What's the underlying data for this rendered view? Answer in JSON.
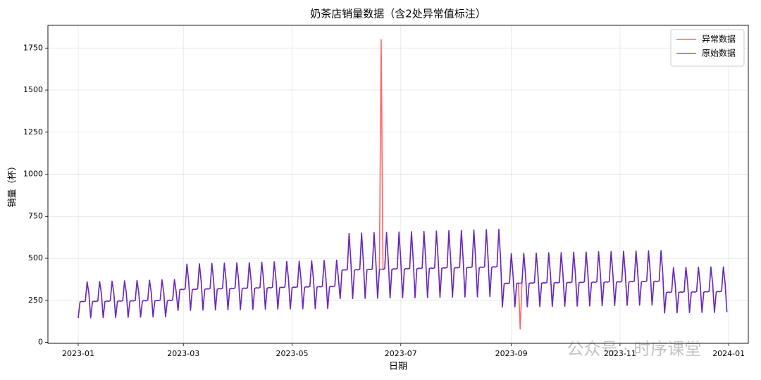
{
  "chart_data": {
    "type": "line",
    "title": "奶茶店销量数据（含2处异常值标注）",
    "x_label": "日期",
    "y_label": "销量（杯）",
    "watermark": "公众号 · 时序课堂",
    "xlim": [
      -17,
      376
    ],
    "xticks": [
      {
        "value": 0,
        "label": "2023-01"
      },
      {
        "value": 59,
        "label": "2023-03"
      },
      {
        "value": 120,
        "label": "2023-05"
      },
      {
        "value": 181,
        "label": "2023-07"
      },
      {
        "value": 243,
        "label": "2023-09"
      },
      {
        "value": 304,
        "label": "2023-11"
      },
      {
        "value": 365,
        "label": "2024-01"
      }
    ],
    "ylim": [
      -6,
      1885
    ],
    "yticks": [
      0,
      250,
      500,
      750,
      1000,
      1250,
      1500,
      1750
    ],
    "grid": true,
    "legend": "upper right",
    "series": [
      {
        "name": "异常数据",
        "color": "#ff0000",
        "values": [
          145,
          240,
          244,
          242,
          246,
          360,
          290,
          146,
          241,
          245,
          243,
          247,
          362,
          291,
          147,
          242,
          246,
          244,
          248,
          364,
          292,
          148,
          243,
          247,
          245,
          249,
          366,
          293,
          149,
          244,
          248,
          246,
          250,
          368,
          294,
          150,
          245,
          249,
          247,
          251,
          370,
          295,
          151,
          246,
          250,
          248,
          252,
          372,
          296,
          152,
          247,
          251,
          249,
          253,
          374,
          297,
          190,
          312,
          316,
          314,
          318,
          465,
          362,
          191,
          313,
          317,
          315,
          319,
          467,
          363,
          192,
          315,
          319,
          317,
          321,
          469,
          365,
          193,
          316,
          320,
          318,
          322,
          471,
          366,
          194,
          318,
          322,
          320,
          324,
          473,
          368,
          195,
          319,
          323,
          321,
          325,
          475,
          369,
          196,
          321,
          325,
          323,
          327,
          477,
          371,
          197,
          322,
          326,
          324,
          328,
          479,
          372,
          198,
          324,
          328,
          326,
          330,
          481,
          374,
          199,
          325,
          329,
          327,
          331,
          483,
          375,
          200,
          327,
          331,
          329,
          333,
          485,
          377,
          201,
          328,
          332,
          330,
          334,
          487,
          378,
          202,
          330,
          334,
          332,
          336,
          489,
          380,
          260,
          428,
          432,
          430,
          434,
          648,
          478,
          261,
          429,
          433,
          431,
          435,
          650,
          479,
          262,
          431,
          435,
          433,
          437,
          652,
          481,
          263,
          432,
          1800,
          434,
          438,
          654,
          482,
          264,
          434,
          438,
          436,
          440,
          656,
          484,
          265,
          435,
          439,
          437,
          441,
          658,
          485,
          266,
          437,
          441,
          439,
          443,
          660,
          487,
          267,
          438,
          442,
          440,
          444,
          662,
          488,
          268,
          440,
          444,
          442,
          446,
          664,
          490,
          269,
          441,
          445,
          443,
          447,
          666,
          491,
          270,
          443,
          447,
          445,
          449,
          668,
          493,
          271,
          444,
          448,
          446,
          450,
          670,
          494,
          272,
          446,
          450,
          448,
          452,
          672,
          496,
          210,
          348,
          352,
          350,
          354,
          528,
          398,
          211,
          349,
          353,
          80,
          355,
          530,
          399,
          212,
          350,
          354,
          352,
          356,
          531,
          400,
          213,
          351,
          355,
          353,
          357,
          533,
          401,
          214,
          352,
          356,
          354,
          358,
          534,
          402,
          215,
          353,
          357,
          355,
          359,
          536,
          403,
          216,
          354,
          358,
          356,
          360,
          537,
          404,
          217,
          355,
          359,
          357,
          361,
          539,
          405,
          218,
          356,
          360,
          358,
          362,
          540,
          406,
          219,
          357,
          361,
          359,
          363,
          542,
          407,
          220,
          358,
          362,
          360,
          364,
          543,
          408,
          221,
          359,
          363,
          361,
          365,
          545,
          409,
          222,
          360,
          364,
          362,
          366,
          546,
          410,
          175,
          295,
          299,
          297,
          301,
          445,
          345,
          176,
          296,
          300,
          298,
          302,
          446,
          346,
          177,
          297,
          301,
          299,
          303,
          447,
          347,
          178,
          298,
          302,
          300,
          304,
          448,
          348,
          179,
          299,
          303,
          301,
          305,
          449,
          349,
          180
        ]
      },
      {
        "name": "原始数据",
        "color": "#0000ff",
        "values": [
          145,
          240,
          244,
          242,
          246,
          360,
          290,
          146,
          241,
          245,
          243,
          247,
          362,
          291,
          147,
          242,
          246,
          244,
          248,
          364,
          292,
          148,
          243,
          247,
          245,
          249,
          366,
          293,
          149,
          244,
          248,
          246,
          250,
          368,
          294,
          150,
          245,
          249,
          247,
          251,
          370,
          295,
          151,
          246,
          250,
          248,
          252,
          372,
          296,
          152,
          247,
          251,
          249,
          253,
          374,
          297,
          190,
          312,
          316,
          314,
          318,
          465,
          362,
          191,
          313,
          317,
          315,
          319,
          467,
          363,
          192,
          315,
          319,
          317,
          321,
          469,
          365,
          193,
          316,
          320,
          318,
          322,
          471,
          366,
          194,
          318,
          322,
          320,
          324,
          473,
          368,
          195,
          319,
          323,
          321,
          325,
          475,
          369,
          196,
          321,
          325,
          323,
          327,
          477,
          371,
          197,
          322,
          326,
          324,
          328,
          479,
          372,
          198,
          324,
          328,
          326,
          330,
          481,
          374,
          199,
          325,
          329,
          327,
          331,
          483,
          375,
          200,
          327,
          331,
          329,
          333,
          485,
          377,
          201,
          328,
          332,
          330,
          334,
          487,
          378,
          202,
          330,
          334,
          332,
          336,
          489,
          380,
          260,
          428,
          432,
          430,
          434,
          648,
          478,
          261,
          429,
          433,
          431,
          435,
          650,
          479,
          262,
          431,
          435,
          433,
          437,
          652,
          481,
          263,
          432,
          436,
          434,
          438,
          654,
          482,
          264,
          434,
          438,
          436,
          440,
          656,
          484,
          265,
          435,
          439,
          437,
          441,
          658,
          485,
          266,
          437,
          441,
          439,
          443,
          660,
          487,
          267,
          438,
          442,
          440,
          444,
          662,
          488,
          268,
          440,
          444,
          442,
          446,
          664,
          490,
          269,
          441,
          445,
          443,
          447,
          666,
          491,
          270,
          443,
          447,
          445,
          449,
          668,
          493,
          271,
          444,
          448,
          446,
          450,
          670,
          494,
          272,
          446,
          450,
          448,
          452,
          672,
          496,
          210,
          348,
          352,
          350,
          354,
          528,
          398,
          211,
          349,
          353,
          351,
          355,
          530,
          399,
          212,
          350,
          354,
          352,
          356,
          531,
          400,
          213,
          351,
          355,
          353,
          357,
          533,
          401,
          214,
          352,
          356,
          354,
          358,
          534,
          402,
          215,
          353,
          357,
          355,
          359,
          536,
          403,
          216,
          354,
          358,
          356,
          360,
          537,
          404,
          217,
          355,
          359,
          357,
          361,
          539,
          405,
          218,
          356,
          360,
          358,
          362,
          540,
          406,
          219,
          357,
          361,
          359,
          363,
          542,
          407,
          220,
          358,
          362,
          360,
          364,
          543,
          408,
          221,
          359,
          363,
          361,
          365,
          545,
          409,
          222,
          360,
          364,
          362,
          366,
          546,
          410,
          175,
          295,
          299,
          297,
          301,
          445,
          345,
          176,
          296,
          300,
          298,
          302,
          446,
          346,
          177,
          297,
          301,
          299,
          303,
          447,
          347,
          178,
          298,
          302,
          300,
          304,
          448,
          348,
          179,
          299,
          303,
          301,
          305,
          449,
          349,
          180
        ]
      }
    ]
  }
}
